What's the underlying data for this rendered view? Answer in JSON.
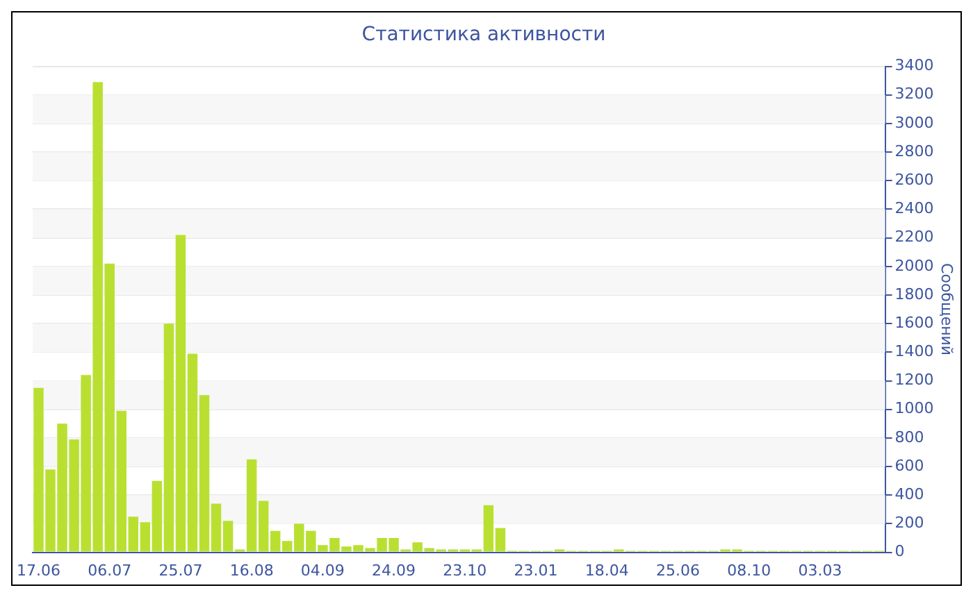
{
  "chart_data": {
    "type": "bar",
    "title": "Статистика активности",
    "y2label": "Сообщений",
    "categories": [
      "17.06",
      null,
      null,
      null,
      null,
      null,
      "06.07",
      null,
      null,
      null,
      null,
      null,
      "25.07",
      null,
      null,
      null,
      null,
      null,
      "16.08",
      null,
      null,
      null,
      null,
      null,
      "04.09",
      null,
      null,
      null,
      null,
      null,
      "24.09",
      null,
      null,
      null,
      null,
      null,
      "23.10",
      null,
      null,
      null,
      null,
      null,
      "23.01",
      null,
      null,
      null,
      null,
      null,
      "18.04",
      null,
      null,
      null,
      null,
      null,
      "25.06",
      null,
      null,
      null,
      null,
      null,
      "08.10",
      null,
      null,
      null,
      null,
      null,
      "03.03",
      null,
      null,
      null,
      null,
      null
    ],
    "series": [
      {
        "color": "#b9e031",
        "axis": "y2",
        "values": [
          1150,
          580,
          900,
          790,
          1240,
          3290,
          2020,
          990,
          250,
          210,
          500,
          1600,
          2220,
          1390,
          1100,
          340,
          220,
          20,
          650,
          360,
          150,
          80,
          200,
          150,
          50,
          100,
          40,
          50,
          30,
          100,
          100,
          20,
          70,
          30,
          20,
          20,
          20,
          20,
          330,
          170,
          10,
          10,
          10,
          10,
          20,
          10,
          10,
          10,
          10,
          20,
          10,
          10,
          10,
          10,
          10,
          10,
          10,
          10,
          20,
          20,
          10,
          10,
          10,
          10,
          10,
          10,
          10,
          10,
          10,
          10,
          10,
          10
        ]
      }
    ],
    "y2lim": [
      0,
      3400
    ],
    "y2ticks": [
      0,
      200,
      400,
      600,
      800,
      1000,
      1200,
      1400,
      1600,
      1800,
      2000,
      2200,
      2400,
      2600,
      2800,
      3000,
      3200,
      3400
    ],
    "grid": "y",
    "legend": false
  }
}
